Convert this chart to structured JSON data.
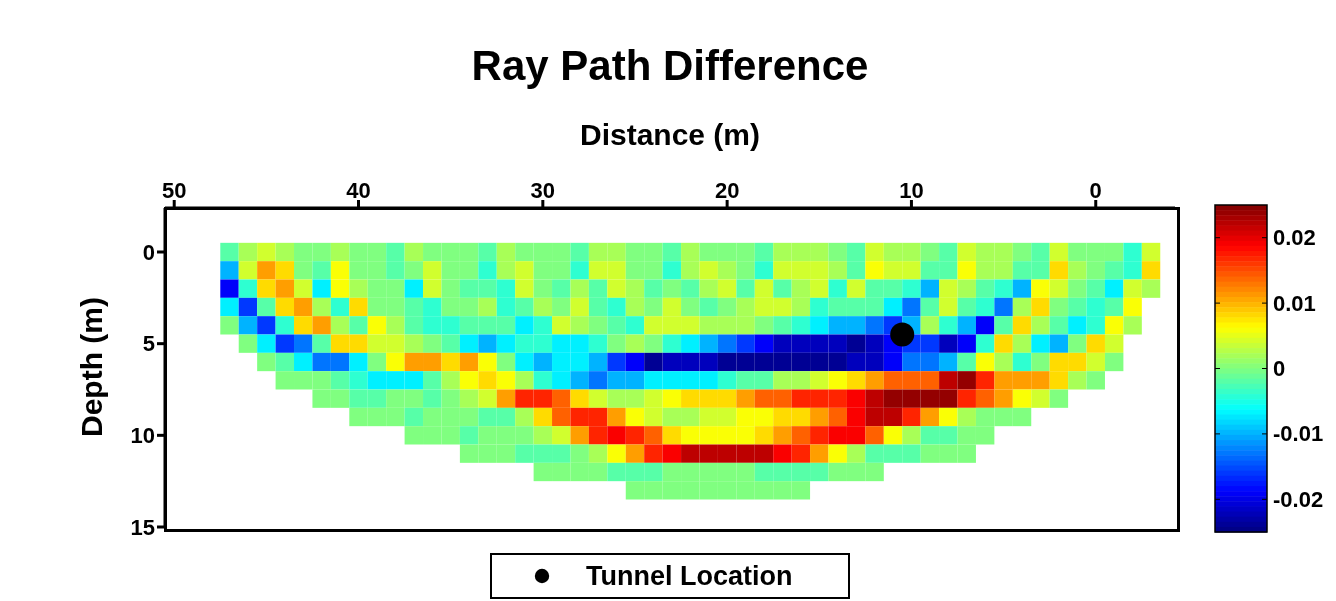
{
  "chart_data": {
    "type": "heatmap",
    "title": "Ray Path Difference",
    "xlabel": "Distance (m)",
    "ylabel": "Depth (m)",
    "x": [
      47,
      46,
      45,
      44,
      43,
      42,
      41,
      40,
      39,
      38,
      37,
      36,
      35,
      34,
      33,
      32,
      31,
      30,
      29,
      28,
      27,
      26,
      25,
      24,
      23,
      22,
      21,
      20,
      19,
      18,
      17,
      16,
      15,
      14,
      13,
      12,
      11,
      10,
      9,
      8,
      7,
      6,
      5,
      4,
      3,
      2,
      1,
      0,
      -1,
      -2,
      -3
    ],
    "y": [
      0,
      1,
      2,
      3,
      4,
      5,
      6,
      7,
      8,
      9,
      10,
      11,
      12,
      13
    ],
    "cells": [
      [
        -0.002,
        0.002,
        0.004,
        0.002,
        0,
        0,
        0.002,
        0,
        0,
        -0.002,
        0.002,
        0,
        0,
        0,
        -0.002,
        0.002,
        0,
        0,
        0,
        -0.002,
        0.002,
        0.002,
        0,
        0,
        -0.002,
        0.002,
        0,
        0,
        0,
        -0.002,
        0.002,
        0.002,
        0.002,
        0,
        -0.002,
        0.004,
        0.002,
        0.002,
        0,
        -0.002,
        0.004,
        0.002,
        0.002,
        0,
        -0.002,
        0.004,
        0,
        0,
        0,
        -0.004,
        0.004
      ],
      [
        -0.01,
        0.004,
        0.011,
        0.008,
        0,
        -0.002,
        0.006,
        0,
        0,
        -0.002,
        0,
        0.004,
        0,
        0,
        -0.004,
        0.002,
        0.004,
        0,
        0,
        -0.004,
        0.004,
        0.004,
        0,
        0,
        -0.004,
        0.002,
        0.004,
        0.002,
        0,
        -0.004,
        0.004,
        0.004,
        0.004,
        0.002,
        -0.002,
        0.006,
        0.004,
        0.004,
        -0.002,
        -0.002,
        0.006,
        0.002,
        0.002,
        -0.002,
        -0.002,
        0.008,
        0.002,
        0,
        -0.002,
        -0.004,
        0.008
      ],
      [
        -0.019,
        -0.004,
        0.008,
        0.011,
        0.004,
        -0.007,
        0.006,
        0.002,
        0,
        0,
        -0.007,
        0.004,
        0,
        -0.002,
        -0.002,
        -0.004,
        0.004,
        0,
        -0.002,
        0.002,
        -0.002,
        0.004,
        0.002,
        -0.002,
        0,
        -0.002,
        0.002,
        0.004,
        -0.002,
        0.004,
        -0.002,
        0.002,
        0.004,
        -0.004,
        0.004,
        -0.002,
        -0.002,
        -0.004,
        -0.01,
        0.004,
        0.002,
        -0.002,
        -0.004,
        -0.01,
        0.006,
        0.004,
        0,
        -0.002,
        -0.007,
        0.004,
        0.002
      ],
      [
        -0.007,
        -0.016,
        -0.002,
        0.008,
        0.011,
        0.002,
        -0.004,
        0.008,
        0,
        0,
        -0.002,
        -0.004,
        0,
        0,
        0.002,
        -0.004,
        -0.002,
        0.002,
        0,
        0.004,
        -0.002,
        -0.004,
        0.002,
        0,
        0.004,
        0,
        -0.002,
        0,
        0.002,
        0.004,
        0.004,
        0.002,
        -0.004,
        -0.002,
        -0.002,
        -0.002,
        -0.007,
        -0.013,
        -0.002,
        0.004,
        -0.002,
        -0.004,
        -0.013,
        0.002,
        0.008,
        0,
        -0.002,
        -0.004,
        -0.002,
        0.006,
        null
      ],
      [
        0,
        -0.01,
        -0.016,
        -0.004,
        0.008,
        0.011,
        0.002,
        -0.002,
        0.006,
        0.002,
        -0.002,
        -0.004,
        -0.004,
        -0.002,
        -0.002,
        -0.002,
        -0.007,
        -0.004,
        0.004,
        0.002,
        0,
        -0.002,
        -0.004,
        0.004,
        0.004,
        0.004,
        0.002,
        0.002,
        0.002,
        0,
        -0.002,
        -0.004,
        -0.007,
        -0.01,
        -0.01,
        -0.013,
        -0.016,
        -0.01,
        0.002,
        -0.004,
        -0.01,
        -0.019,
        -0.002,
        0.008,
        0.002,
        -0.002,
        -0.007,
        -0.004,
        0.006,
        0.002,
        null
      ],
      [
        null,
        0,
        -0.007,
        -0.016,
        -0.013,
        -0.002,
        0.008,
        0.008,
        0.004,
        0.004,
        0.002,
        0,
        -0.002,
        -0.007,
        -0.01,
        -0.007,
        -0.004,
        -0.004,
        -0.007,
        -0.007,
        -0.004,
        0,
        0.002,
        0,
        -0.004,
        -0.007,
        -0.01,
        -0.013,
        -0.016,
        -0.019,
        -0.022,
        -0.022,
        -0.022,
        -0.022,
        -0.024,
        -0.022,
        -0.019,
        -0.016,
        -0.016,
        -0.022,
        -0.019,
        -0.004,
        0.008,
        0.002,
        -0.007,
        -0.01,
        0,
        0.008,
        0.004,
        null,
        null
      ],
      [
        null,
        null,
        0,
        -0.002,
        -0.007,
        -0.013,
        -0.013,
        -0.007,
        0,
        0.006,
        0.011,
        0.011,
        0.008,
        0.011,
        0.006,
        0,
        -0.007,
        -0.01,
        -0.007,
        -0.007,
        -0.01,
        -0.016,
        -0.019,
        -0.024,
        -0.022,
        -0.022,
        -0.022,
        -0.024,
        -0.024,
        -0.024,
        -0.024,
        -0.024,
        -0.024,
        -0.024,
        -0.022,
        -0.022,
        -0.019,
        -0.013,
        -0.013,
        -0.01,
        -0.002,
        0.006,
        0.002,
        -0.004,
        0,
        0.008,
        0.008,
        0.004,
        0,
        null,
        null
      ],
      [
        null,
        null,
        null,
        0,
        0,
        0,
        -0.002,
        -0.004,
        -0.007,
        -0.007,
        -0.007,
        -0.002,
        0.002,
        0.006,
        0.008,
        0.006,
        0.002,
        -0.004,
        -0.007,
        -0.01,
        -0.013,
        -0.01,
        -0.01,
        -0.007,
        -0.007,
        -0.007,
        -0.007,
        -0.004,
        -0.002,
        -0.002,
        0.002,
        0.002,
        0.004,
        0.006,
        0.008,
        0.011,
        0.014,
        0.014,
        0.014,
        0.022,
        0.024,
        0.017,
        0.011,
        0.011,
        0.011,
        0.008,
        0.002,
        0,
        null,
        null,
        null
      ],
      [
        null,
        null,
        null,
        null,
        null,
        0,
        0,
        -0.002,
        -0.002,
        0,
        0,
        -0.002,
        0,
        0.002,
        0.004,
        0.011,
        0.017,
        0.017,
        0.014,
        0.008,
        0.004,
        0.002,
        0.002,
        0.004,
        0.006,
        0.008,
        0.008,
        0.008,
        0.011,
        0.014,
        0.014,
        0.017,
        0.017,
        0.017,
        0.019,
        0.022,
        0.024,
        0.024,
        0.024,
        0.024,
        0.017,
        0.014,
        0.011,
        0.006,
        0.004,
        0,
        null,
        null,
        null,
        null,
        null
      ],
      [
        null,
        null,
        null,
        null,
        null,
        null,
        null,
        0,
        0,
        0,
        -0.002,
        0,
        0,
        0,
        -0.002,
        -0.002,
        0.002,
        0.008,
        0.014,
        0.017,
        0.017,
        0.011,
        0.006,
        0.004,
        0.002,
        0.002,
        0.004,
        0.004,
        0.006,
        0.006,
        0.008,
        0.008,
        0.011,
        0.014,
        0.019,
        0.022,
        0.022,
        0.017,
        0.011,
        0.006,
        0.002,
        0,
        0,
        0,
        null,
        null,
        null,
        null,
        null,
        null,
        null
      ],
      [
        null,
        null,
        null,
        null,
        null,
        null,
        null,
        null,
        null,
        null,
        0,
        0,
        0,
        -0.002,
        0,
        0,
        0,
        0.002,
        0.004,
        0.011,
        0.017,
        0.019,
        0.017,
        0.014,
        0.008,
        0.006,
        0.006,
        0.006,
        0.006,
        0.008,
        0.011,
        0.014,
        0.017,
        0.019,
        0.019,
        0.014,
        0.006,
        0.002,
        -0.002,
        -0.002,
        0,
        0,
        null,
        null,
        null,
        null,
        null,
        null,
        null,
        null,
        null
      ],
      [
        null,
        null,
        null,
        null,
        null,
        null,
        null,
        null,
        null,
        null,
        null,
        null,
        null,
        0,
        0,
        0,
        -0.002,
        -0.002,
        -0.002,
        0,
        0.002,
        0.006,
        0.011,
        0.017,
        0.019,
        0.022,
        0.022,
        0.022,
        0.022,
        0.022,
        0.019,
        0.017,
        0.011,
        0.006,
        0.002,
        -0.002,
        -0.002,
        -0.002,
        0,
        0,
        0,
        null,
        null,
        null,
        null,
        null,
        null,
        null,
        null,
        null,
        null
      ],
      [
        null,
        null,
        null,
        null,
        null,
        null,
        null,
        null,
        null,
        null,
        null,
        null,
        null,
        null,
        null,
        null,
        null,
        0,
        0,
        0,
        0,
        -0.002,
        -0.002,
        -0.002,
        0,
        0,
        0,
        0,
        0,
        -0.002,
        -0.002,
        -0.002,
        -0.002,
        0,
        0,
        0,
        null,
        null,
        null,
        null,
        null,
        null,
        null,
        null,
        null,
        null,
        null,
        null,
        null,
        null,
        null
      ],
      [
        null,
        null,
        null,
        null,
        null,
        null,
        null,
        null,
        null,
        null,
        null,
        null,
        null,
        null,
        null,
        null,
        null,
        null,
        null,
        null,
        null,
        null,
        0,
        0,
        0,
        0,
        0,
        0,
        0,
        0,
        0,
        0,
        null,
        null,
        null,
        null,
        null,
        null,
        null,
        null,
        null,
        null,
        null,
        null,
        null,
        null,
        null,
        null,
        null,
        null,
        null
      ]
    ],
    "clim": [
      -0.025,
      0.025
    ],
    "cticks": [
      0.02,
      0.01,
      0,
      -0.01,
      -0.02
    ],
    "xlim": [
      50.5,
      -4.3
    ],
    "xticks": [
      50,
      40,
      30,
      20,
      10,
      0
    ],
    "ylim": [
      15,
      -2.4
    ],
    "yticks": [
      0,
      5,
      10,
      15
    ],
    "series": [
      {
        "type": "scatter",
        "name": "Tunnel Location",
        "color": "#000000",
        "x": [
          10.5
        ],
        "values": [
          4.5
        ]
      }
    ],
    "marker": "circle",
    "legend": "bottom"
  }
}
